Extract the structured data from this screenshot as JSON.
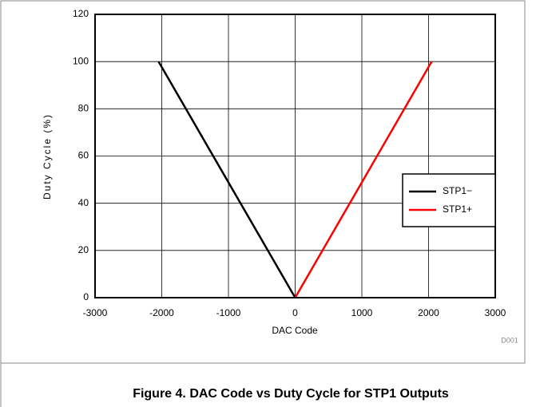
{
  "chart_data": {
    "type": "line",
    "xlabel": "DAC Code",
    "ylabel": "Duty Cycle (%)",
    "caption": "Figure 4. DAC Code vs Duty Cycle for STP1 Outputs",
    "figure_id": "D001",
    "xlim": [
      -3000,
      3000
    ],
    "xticks": [
      -3000,
      -2000,
      -1000,
      0,
      1000,
      2000,
      3000
    ],
    "ylim": [
      0,
      120
    ],
    "yticks": [
      0,
      20,
      40,
      60,
      80,
      100,
      120
    ],
    "grid": true,
    "legend": "right",
    "series": [
      {
        "name": "STP1−",
        "color": "#000000",
        "x": [
          -2048,
          0
        ],
        "values": [
          100,
          0
        ]
      },
      {
        "name": "STP1+",
        "color": "#ff0000",
        "x": [
          0,
          2047
        ],
        "values": [
          0,
          100
        ]
      }
    ]
  }
}
